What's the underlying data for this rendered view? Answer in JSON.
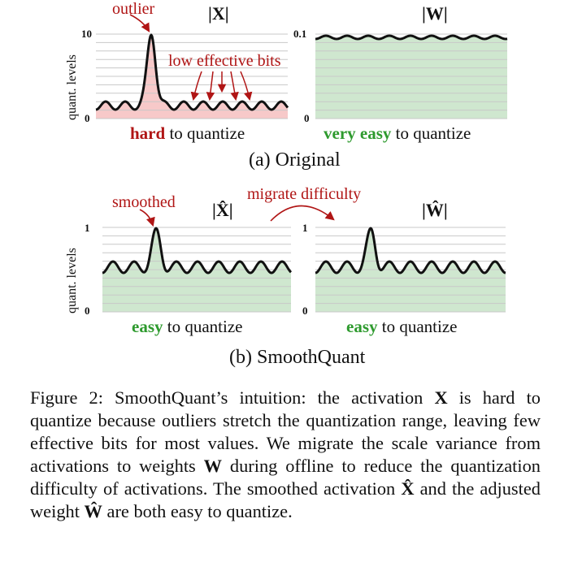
{
  "top_row": {
    "activation": {
      "title": "|X|",
      "y_axis_label": "quant. levels",
      "y_max_tick": "10",
      "y_min_tick": "0",
      "annotation_outlier": "outlier",
      "annotation_low_bits": "low effective bits",
      "difficulty_word": "hard",
      "difficulty_rest": "to quantize"
    },
    "weight": {
      "title": "|W|",
      "y_max_tick": "0.1",
      "y_min_tick": "0",
      "difficulty_word": "very easy",
      "difficulty_rest": "to quantize"
    },
    "subcaption": "(a) Original"
  },
  "bottom_row": {
    "activation": {
      "title": "|X̂|",
      "y_axis_label": "quant. levels",
      "y_max_tick": "1",
      "y_min_tick": "0",
      "annotation_smoothed": "smoothed",
      "difficulty_word": "easy",
      "difficulty_rest": "to quantize"
    },
    "migrate_label": "migrate difficulty",
    "weight": {
      "title": "|Ŵ|",
      "y_max_tick": "1",
      "y_min_tick": "0",
      "difficulty_word": "easy",
      "difficulty_rest": "to quantize"
    },
    "subcaption": "(b) SmoothQuant"
  },
  "caption": {
    "p1": "Figure 2: SmoothQuant’s intuition: the activation ",
    "x": "X",
    "p2": " is hard to quantize because outliers stretch the quantization range, leaving few effective bits for most values. We migrate the scale variance from activations to weights ",
    "w": "W",
    "p3": " during offline to reduce the quantization difficulty of activations.  The smoothed activation ",
    "xhat": "X̂",
    "p4": " and the adjusted weight ",
    "what": "Ŵ",
    "p5": " are both easy to quantize."
  },
  "colors": {
    "red_fill": "#f7c9c9",
    "green_fill": "#cfe7cf",
    "red_text": "#b01515",
    "green_text": "#2e9a2e",
    "grid": "#c8c8c8"
  }
}
